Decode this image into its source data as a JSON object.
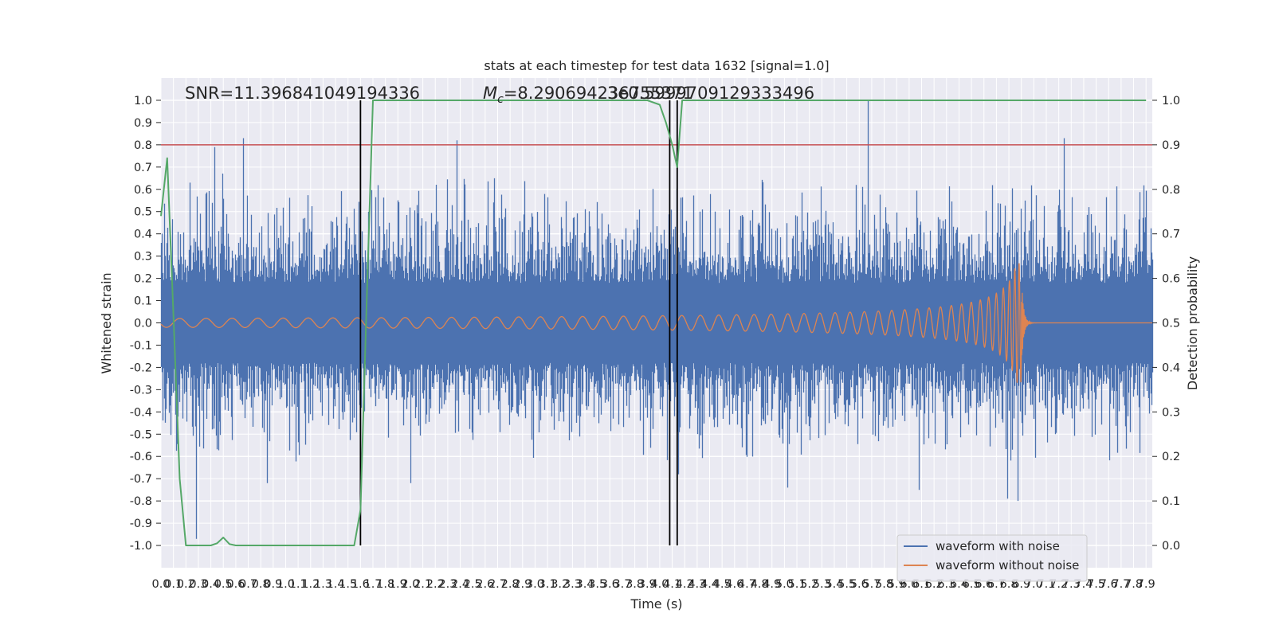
{
  "chart_data": {
    "type": "line",
    "title": "stats at each timestep for test data 1632 [signal=1.0]",
    "xlabel": "Time (s)",
    "ylabel": "Whitened strain",
    "y2label": "Detection probability",
    "xlim": [
      0.0,
      7.95
    ],
    "ylim": [
      -1.1,
      1.1
    ],
    "y2lim": [
      -0.05,
      1.05
    ],
    "grid": true,
    "legend_position": "lower-right",
    "xticks": [
      "0.0",
      "0.1",
      "0.2",
      "0.3",
      "0.4",
      "0.5",
      "0.6",
      "0.7",
      "0.8",
      "0.9",
      "1.0",
      "1.1",
      "1.2",
      "1.3",
      "1.4",
      "1.5",
      "1.6",
      "1.7",
      "1.8",
      "1.9",
      "2.0",
      "2.1",
      "2.2",
      "2.3",
      "2.4",
      "2.5",
      "2.6",
      "2.7",
      "2.8",
      "2.9",
      "3.0",
      "3.1",
      "3.2",
      "3.3",
      "3.4",
      "3.5",
      "3.6",
      "3.7",
      "3.8",
      "3.9",
      "4.0",
      "4.1",
      "4.2",
      "4.3",
      "4.4",
      "4.5",
      "4.6",
      "4.7",
      "4.8",
      "4.9",
      "5.0",
      "5.1",
      "5.2",
      "5.3",
      "5.4",
      "5.5",
      "5.6",
      "5.7",
      "5.8",
      "5.9",
      "6.0",
      "6.1",
      "6.2",
      "6.3",
      "6.4",
      "6.5",
      "6.6",
      "6.7",
      "6.8",
      "6.9",
      "7.0",
      "7.1",
      "7.2",
      "7.3",
      "7.4",
      "7.5",
      "7.6",
      "7.7",
      "7.8",
      "7.9"
    ],
    "yticks": [
      "1.0",
      "0.9",
      "0.8",
      "0.7",
      "0.6",
      "0.5",
      "0.4",
      "0.3",
      "0.2",
      "0.1",
      "0.0",
      "-0.1",
      "-0.2",
      "-0.3",
      "-0.4",
      "-0.5",
      "-0.6",
      "-0.7",
      "-0.8",
      "-0.9",
      "-1.0"
    ],
    "y2ticks": [
      "1.0",
      "0.9",
      "0.8",
      "0.7",
      "0.6",
      "0.5",
      "0.4",
      "0.3",
      "0.2",
      "0.1",
      "0.0"
    ],
    "annotations": {
      "snr": "SNR=11.396841049194336",
      "mc_prefix": "M",
      "mc_sub": "c",
      "mc_value": "=8.290694236755371",
      "overlap": "3e0.5999709129333496"
    },
    "threshold": {
      "y": 0.8,
      "color": "#c44e52"
    },
    "vlines": [
      1.6,
      4.08,
      4.14
    ],
    "series": [
      {
        "name": "waveform with noise",
        "color": "#4c72b0"
      },
      {
        "name": "waveform without noise",
        "color": "#dd8452"
      },
      {
        "color": "#55a868",
        "axis": "right",
        "x": [
          0.0,
          0.05,
          0.1,
          0.15,
          0.2,
          0.25,
          0.3,
          0.35,
          0.4,
          0.45,
          0.5,
          0.55,
          0.6,
          0.7,
          0.8,
          0.9,
          1.0,
          1.1,
          1.2,
          1.3,
          1.4,
          1.5,
          1.55,
          1.6,
          1.65,
          1.7,
          1.75,
          2.0,
          2.5,
          3.0,
          3.5,
          3.8,
          3.9,
          4.0,
          4.05,
          4.1,
          4.14,
          4.18,
          4.25,
          4.5,
          5.0,
          5.5,
          6.0,
          6.5,
          7.0,
          7.5,
          7.9
        ],
        "y": [
          0.74,
          0.87,
          0.52,
          0.15,
          0.0,
          0.0,
          0.0,
          0.0,
          0.0,
          0.005,
          0.018,
          0.003,
          0.0,
          0.0,
          0.0,
          0.0,
          0.0,
          0.0,
          0.0,
          0.0,
          0.0,
          0.0,
          0.0,
          0.08,
          0.55,
          1.0,
          1.0,
          1.0,
          1.0,
          1.0,
          1.0,
          1.0,
          1.0,
          0.99,
          0.95,
          0.9,
          0.85,
          1.0,
          1.0,
          1.0,
          1.0,
          1.0,
          1.0,
          1.0,
          1.0,
          1.0,
          1.0
        ]
      }
    ],
    "noisy_spikes": [
      {
        "x": 0.43,
        "y": 0.79
      },
      {
        "x": 0.66,
        "y": 0.83
      },
      {
        "x": 2.37,
        "y": 0.82
      },
      {
        "x": 5.67,
        "y": 1.0
      },
      {
        "x": 7.24,
        "y": 0.83
      },
      {
        "x": 0.28,
        "y": -0.97
      },
      {
        "x": 0.85,
        "y": -0.72
      },
      {
        "x": 2.0,
        "y": -0.72
      },
      {
        "x": 5.02,
        "y": -0.74
      },
      {
        "x": 6.87,
        "y": -0.8
      },
      {
        "x": 6.79,
        "y": -0.79
      },
      {
        "x": 6.08,
        "y": -0.75
      },
      {
        "x": 1.6,
        "y": -0.68
      },
      {
        "x": 4.15,
        "y": -0.68
      }
    ],
    "chirp": {
      "t_merge": 6.9,
      "peak_amplitude": 0.27,
      "early_amplitude": 0.02
    }
  }
}
